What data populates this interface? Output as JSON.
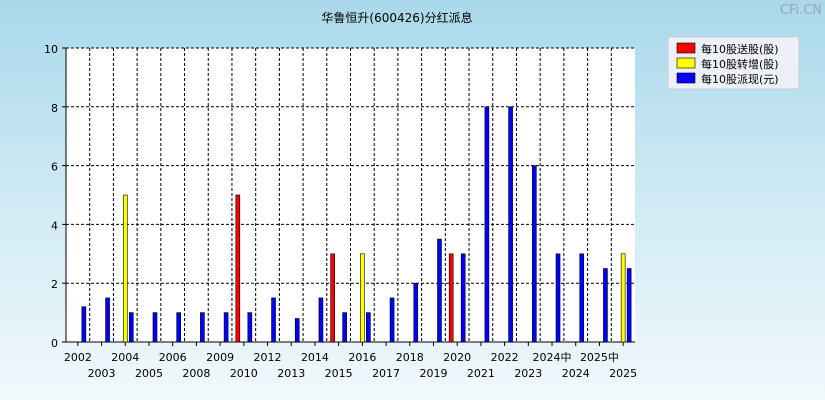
{
  "chart_data": {
    "type": "bar",
    "title": "华鲁恒升(600426)分红派息",
    "watermark": "CFi.CN",
    "ylim": [
      0,
      10
    ],
    "yticks": [
      0,
      2,
      4,
      6,
      8,
      10
    ],
    "grid": true,
    "legend_position": "top-right",
    "series": [
      {
        "name": "每10股送股(股)",
        "color": "#ff0000"
      },
      {
        "name": "每10股转增(股)",
        "color": "#ffff00"
      },
      {
        "name": "每10股派现(元)",
        "color": "#0000ff"
      }
    ],
    "groups": [
      {
        "label": "2002",
        "row": 1,
        "values": [
          0,
          0,
          1.2
        ]
      },
      {
        "label": "2003",
        "row": 2,
        "values": [
          0,
          0,
          1.5
        ]
      },
      {
        "label": "2004",
        "row": 1,
        "values": [
          0,
          5,
          1.0
        ]
      },
      {
        "label": "2005",
        "row": 2,
        "values": [
          0,
          0,
          1.0
        ]
      },
      {
        "label": "2006",
        "row": 1,
        "values": [
          0,
          0,
          1.0
        ]
      },
      {
        "label": "2008",
        "row": 2,
        "values": [
          0,
          0,
          1.0
        ]
      },
      {
        "label": "2009",
        "row": 1,
        "values": [
          0,
          0,
          1.0
        ]
      },
      {
        "label": "2010",
        "row": 2,
        "values": [
          5,
          0,
          1.0
        ]
      },
      {
        "label": "2012",
        "row": 1,
        "values": [
          0,
          0,
          1.5
        ]
      },
      {
        "label": "2013",
        "row": 2,
        "values": [
          0,
          0,
          0.8
        ]
      },
      {
        "label": "2014",
        "row": 1,
        "values": [
          0,
          0,
          1.5
        ]
      },
      {
        "label": "2015",
        "row": 2,
        "values": [
          3,
          0,
          1.0
        ]
      },
      {
        "label": "2016",
        "row": 1,
        "values": [
          0,
          3,
          1.0
        ]
      },
      {
        "label": "2017",
        "row": 2,
        "values": [
          0,
          0,
          1.5
        ]
      },
      {
        "label": "2018",
        "row": 1,
        "values": [
          0,
          0,
          2.0
        ]
      },
      {
        "label": "2019",
        "row": 2,
        "values": [
          0,
          0,
          3.5
        ]
      },
      {
        "label": "2020",
        "row": 1,
        "values": [
          3,
          0,
          3.0
        ]
      },
      {
        "label": "2021",
        "row": 2,
        "values": [
          0,
          0,
          8.0
        ]
      },
      {
        "label": "2022",
        "row": 1,
        "values": [
          0,
          0,
          8.0
        ]
      },
      {
        "label": "2023",
        "row": 2,
        "values": [
          0,
          0,
          6.0
        ]
      },
      {
        "label": "2024中",
        "row": 1,
        "values": [
          0,
          0,
          3.0
        ]
      },
      {
        "label": "2024",
        "row": 2,
        "values": [
          0,
          0,
          3.0
        ]
      },
      {
        "label": "2025中",
        "row": 1,
        "values": [
          0,
          0,
          2.5
        ]
      },
      {
        "label": "2025",
        "row": 2,
        "values": [
          0,
          3,
          2.5
        ]
      }
    ]
  }
}
